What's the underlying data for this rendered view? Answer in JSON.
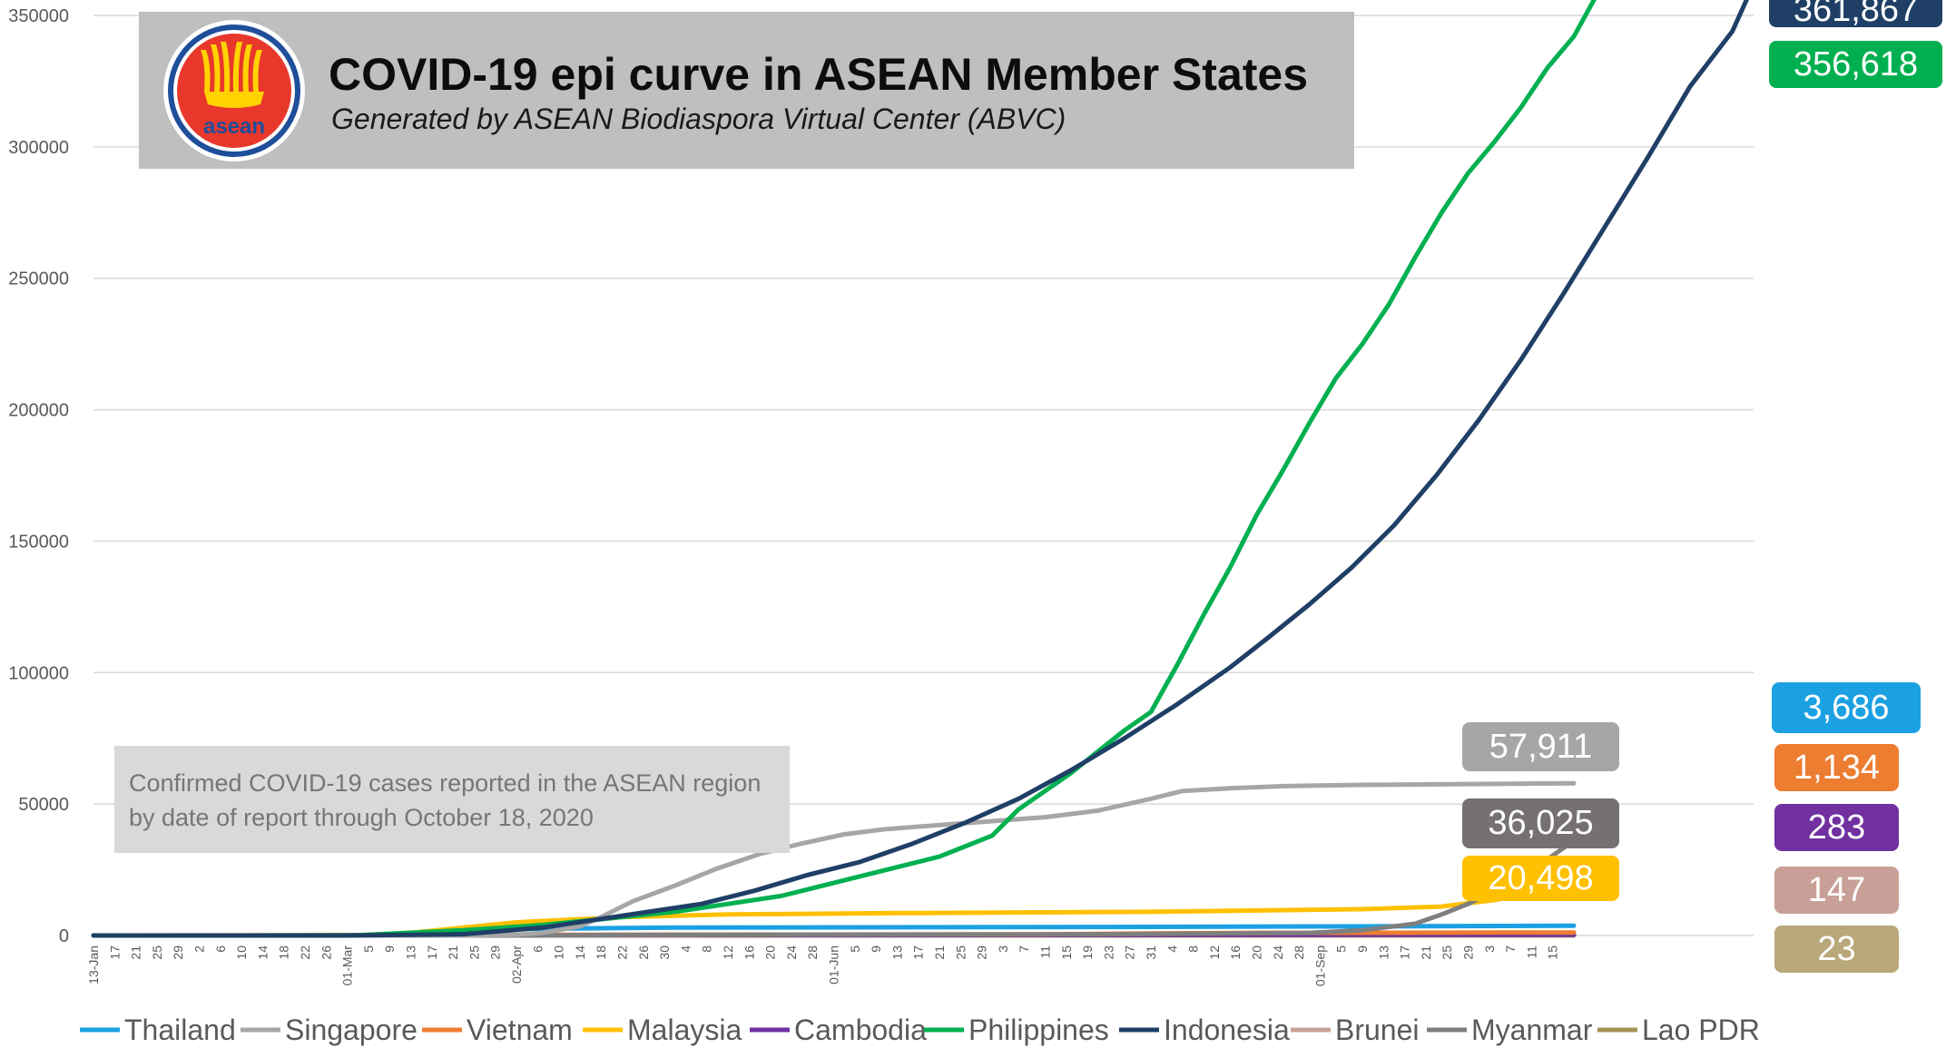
{
  "chart_data": {
    "type": "line",
    "title": "COVID-19 epi curve in ASEAN Member States",
    "subtitle": "Generated by ASEAN Biodiaspora Virtual Center (ABVC)",
    "note": "Confirmed COVID-19 cases reported in the ASEAN region by date of report  through October 18, 2020",
    "logo_text": "asean",
    "xlabel": "",
    "ylabel": "",
    "ylim": [
      0,
      350000
    ],
    "yticks": [
      "0",
      "50000",
      "100000",
      "150000",
      "200000",
      "250000",
      "300000",
      "350000"
    ],
    "xtick_labels": [
      "13-Jan",
      "17",
      "21",
      "25",
      "29",
      "2",
      "6",
      "10",
      "14",
      "18",
      "22",
      "26",
      "01-Mar",
      "5",
      "9",
      "13",
      "17",
      "21",
      "25",
      "29",
      "02-Apr",
      "6",
      "10",
      "14",
      "18",
      "22",
      "26",
      "30",
      "4",
      "8",
      "12",
      "16",
      "20",
      "24",
      "28",
      "01-Jun",
      "5",
      "9",
      "13",
      "17",
      "21",
      "25",
      "29",
      "3",
      "7",
      "11",
      "15",
      "19",
      "23",
      "27",
      "31",
      "4",
      "8",
      "12",
      "16",
      "20",
      "24",
      "28",
      "01-Sep",
      "5",
      "9",
      "13",
      "17",
      "21",
      "25",
      "29",
      "3",
      "7",
      "11",
      "15"
    ],
    "grid": true,
    "legend_position": "bottom",
    "series": [
      {
        "name": "Thailand",
        "color": "#1ba1e2",
        "points": [
          [
            0,
            0
          ],
          [
            55,
            0
          ],
          [
            65,
            1000
          ],
          [
            80,
            2500
          ],
          [
            110,
            3000
          ],
          [
            180,
            3200
          ],
          [
            245,
            3500
          ],
          [
            280,
            3686
          ]
        ]
      },
      {
        "name": "Singapore",
        "color": "#a6a6a6",
        "points": [
          [
            0,
            0
          ],
          [
            70,
            0
          ],
          [
            80,
            300
          ],
          [
            85,
            1000
          ],
          [
            92,
            3500
          ],
          [
            96,
            7000
          ],
          [
            102,
            13000
          ],
          [
            110,
            19000
          ],
          [
            118,
            25500
          ],
          [
            126,
            31000
          ],
          [
            134,
            35000
          ],
          [
            142,
            38500
          ],
          [
            150,
            40500
          ],
          [
            160,
            42000
          ],
          [
            170,
            43500
          ],
          [
            180,
            45000
          ],
          [
            190,
            47500
          ],
          [
            200,
            52000
          ],
          [
            206,
            55000
          ],
          [
            215,
            56000
          ],
          [
            225,
            56800
          ],
          [
            240,
            57300
          ],
          [
            260,
            57600
          ],
          [
            280,
            57911
          ]
        ]
      },
      {
        "name": "Vietnam",
        "color": "#ed7d31",
        "points": [
          [
            0,
            0
          ],
          [
            10,
            0
          ],
          [
            12,
            16
          ],
          [
            40,
            16
          ],
          [
            65,
            200
          ],
          [
            110,
            300
          ],
          [
            180,
            400
          ],
          [
            200,
            800
          ],
          [
            220,
            1000
          ],
          [
            280,
            1134
          ]
        ]
      },
      {
        "name": "Malaysia",
        "color": "#ffc000",
        "points": [
          [
            0,
            0
          ],
          [
            50,
            100
          ],
          [
            60,
            1000
          ],
          [
            70,
            3000
          ],
          [
            80,
            5000
          ],
          [
            90,
            6000
          ],
          [
            100,
            7000
          ],
          [
            120,
            8000
          ],
          [
            150,
            8500
          ],
          [
            200,
            9000
          ],
          [
            240,
            10000
          ],
          [
            255,
            11000
          ],
          [
            265,
            13500
          ],
          [
            272,
            16000
          ],
          [
            280,
            20498
          ]
        ]
      },
      {
        "name": "Cambodia",
        "color": "#7030a0",
        "points": [
          [
            0,
            0
          ],
          [
            14,
            1
          ],
          [
            60,
            50
          ],
          [
            80,
            120
          ],
          [
            150,
            150
          ],
          [
            230,
            280
          ],
          [
            280,
            283
          ]
        ]
      },
      {
        "name": "Philippines",
        "color": "#00b050",
        "points": [
          [
            0,
            0
          ],
          [
            20,
            3
          ],
          [
            50,
            100
          ],
          [
            70,
            2000
          ],
          [
            85,
            4000
          ],
          [
            95,
            6000
          ],
          [
            110,
            9000
          ],
          [
            120,
            12000
          ],
          [
            130,
            15000
          ],
          [
            140,
            20000
          ],
          [
            150,
            25000
          ],
          [
            160,
            30000
          ],
          [
            165,
            34000
          ],
          [
            170,
            38000
          ],
          [
            175,
            48000
          ],
          [
            180,
            55000
          ],
          [
            185,
            62000
          ],
          [
            190,
            70000
          ],
          [
            195,
            78000
          ],
          [
            200,
            85000
          ],
          [
            205,
            103000
          ],
          [
            210,
            122000
          ],
          [
            215,
            140000
          ],
          [
            220,
            160000
          ],
          [
            225,
            177000
          ],
          [
            230,
            195000
          ],
          [
            235,
            212000
          ],
          [
            240,
            225000
          ],
          [
            245,
            240000
          ],
          [
            250,
            258000
          ],
          [
            255,
            275000
          ],
          [
            260,
            290000
          ],
          [
            265,
            302000
          ],
          [
            270,
            315000
          ],
          [
            275,
            330000
          ],
          [
            280,
            342000
          ],
          [
            284,
            356618
          ]
        ]
      },
      {
        "name": "Indonesia",
        "color": "#1f3f66",
        "points": [
          [
            0,
            0
          ],
          [
            48,
            0
          ],
          [
            70,
            500
          ],
          [
            85,
            3000
          ],
          [
            95,
            6000
          ],
          [
            105,
            9000
          ],
          [
            115,
            12000
          ],
          [
            125,
            17000
          ],
          [
            135,
            23000
          ],
          [
            145,
            28000
          ],
          [
            155,
            35000
          ],
          [
            165,
            43000
          ],
          [
            175,
            52000
          ],
          [
            185,
            63000
          ],
          [
            195,
            75000
          ],
          [
            205,
            88000
          ],
          [
            215,
            102000
          ],
          [
            222,
            113000
          ],
          [
            230,
            126000
          ],
          [
            238,
            140000
          ],
          [
            246,
            156000
          ],
          [
            254,
            175000
          ],
          [
            262,
            196000
          ],
          [
            270,
            219000
          ],
          [
            278,
            244000
          ],
          [
            286,
            270000
          ],
          [
            294,
            296000
          ],
          [
            302,
            323000
          ],
          [
            310,
            344000
          ],
          [
            314,
            361867
          ]
        ]
      },
      {
        "name": "Brunei",
        "color": "#c9a097",
        "points": [
          [
            0,
            0
          ],
          [
            55,
            0
          ],
          [
            70,
            100
          ],
          [
            90,
            140
          ],
          [
            280,
            147
          ]
        ]
      },
      {
        "name": "Myanmar",
        "color": "#7f7f7f",
        "points": [
          [
            0,
            0
          ],
          [
            80,
            0
          ],
          [
            90,
            100
          ],
          [
            100,
            200
          ],
          [
            190,
            500
          ],
          [
            230,
            1000
          ],
          [
            240,
            2000
          ],
          [
            250,
            4500
          ],
          [
            255,
            8000
          ],
          [
            260,
            12000
          ],
          [
            265,
            17000
          ],
          [
            270,
            22000
          ],
          [
            275,
            29000
          ],
          [
            280,
            36025
          ]
        ]
      },
      {
        "name": "Lao PDR",
        "color": "#a59256",
        "points": [
          [
            0,
            0
          ],
          [
            70,
            0
          ],
          [
            75,
            10
          ],
          [
            90,
            19
          ],
          [
            280,
            23
          ]
        ]
      }
    ],
    "value_labels": [
      {
        "text": "361,867",
        "color": "#1f3f66"
      },
      {
        "text": "356,618",
        "color": "#00b050"
      },
      {
        "text": "57,911",
        "color": "#a6a6a6"
      },
      {
        "text": "36,025",
        "color": "#767171"
      },
      {
        "text": "20,498",
        "color": "#ffc000"
      },
      {
        "text": "3,686",
        "color": "#1ba1e2"
      },
      {
        "text": "1,134",
        "color": "#ed7d31"
      },
      {
        "text": "283",
        "color": "#7030a0"
      },
      {
        "text": "147",
        "color": "#c9a097"
      },
      {
        "text": "23",
        "color": "#b9a87a"
      }
    ]
  }
}
